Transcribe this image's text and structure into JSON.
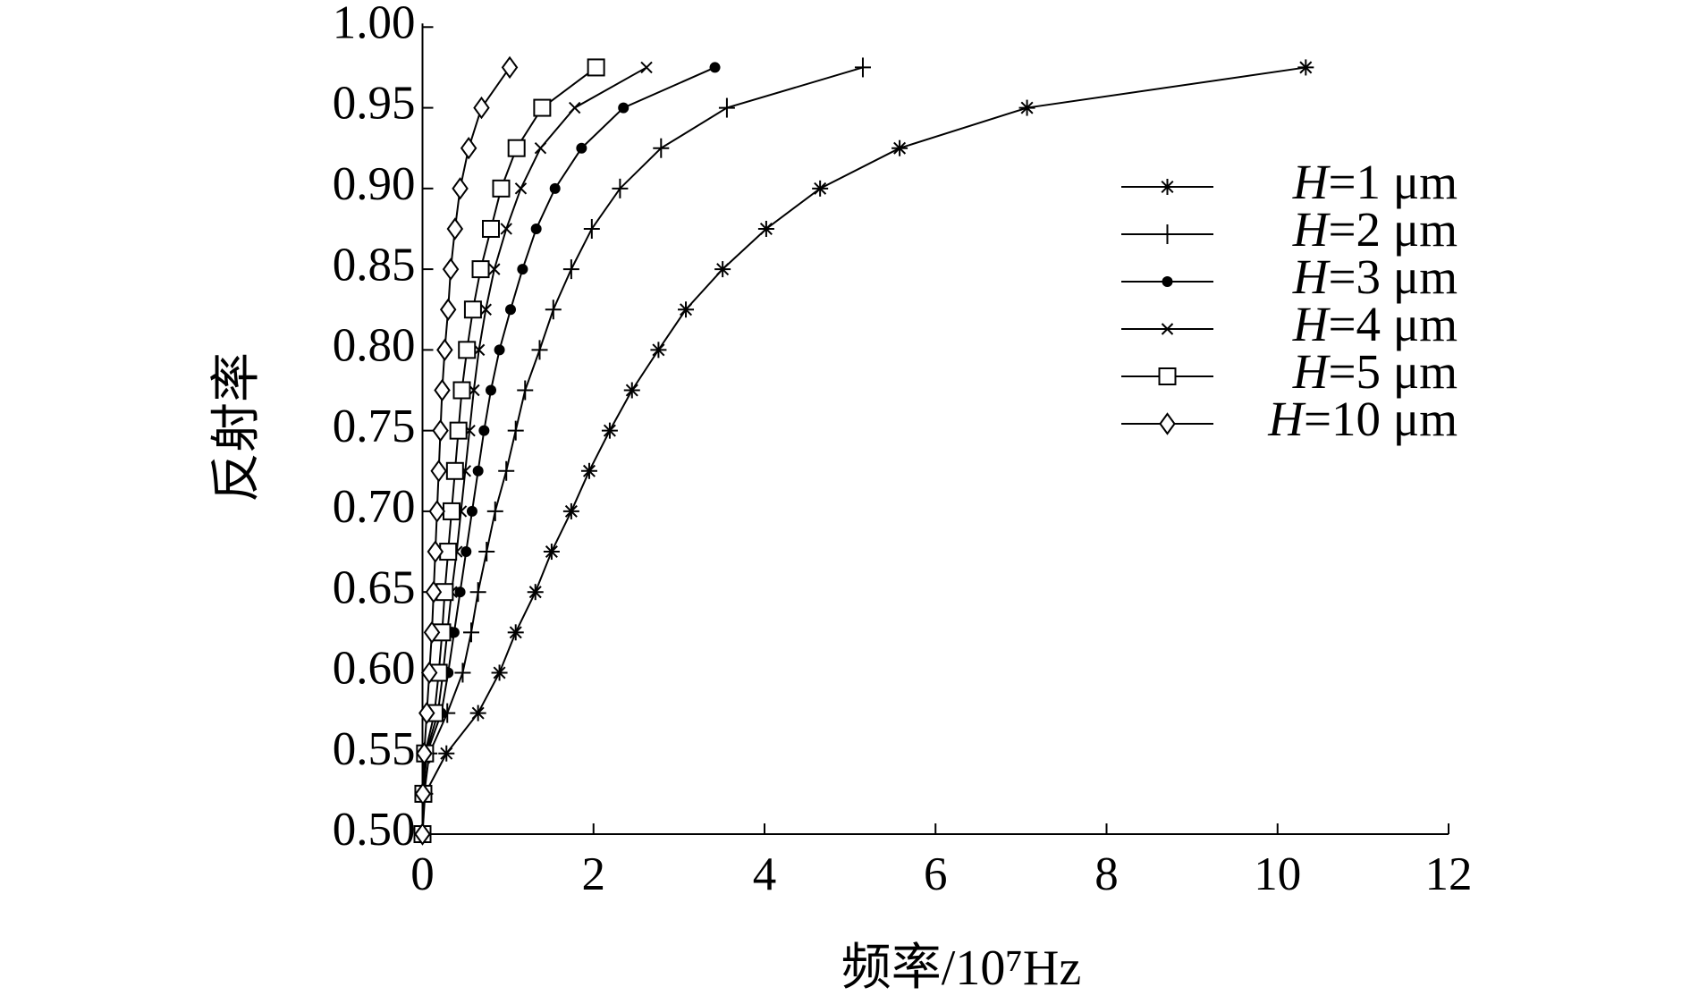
{
  "chart_data": {
    "type": "line",
    "xlabel": "频率/10⁷Hz",
    "ylabel": "反射率",
    "xlim": [
      0,
      12
    ],
    "xticks": [
      0,
      2,
      4,
      6,
      8,
      10,
      12
    ],
    "ylim": [
      0.5,
      1.0
    ],
    "yticks": [
      {
        "value": 0.5,
        "label": "0.50"
      },
      0.55,
      {
        "value": 0.6,
        "label": "0.60"
      },
      0.65,
      {
        "value": 0.7,
        "label": "0.70"
      },
      0.75,
      {
        "value": 0.8,
        "label": "0.80"
      },
      0.85,
      {
        "value": 0.9,
        "label": "0.90"
      },
      0.95,
      {
        "value": 1.0,
        "label": "1.00"
      }
    ],
    "legend": "upper right",
    "series": [
      {
        "name": "H=1 μm",
        "marker": "star",
        "color": "#000000",
        "x": [
          0,
          0.03,
          0.28,
          0.65,
          0.9,
          1.09,
          1.32,
          1.51,
          1.74,
          1.95,
          2.19,
          2.45,
          2.76,
          3.08,
          3.51,
          4.02,
          4.65,
          5.58,
          7.07,
          10.33
        ],
        "values": [
          0.5,
          0.525,
          0.55,
          0.575,
          0.6,
          0.625,
          0.65,
          0.675,
          0.7,
          0.725,
          0.75,
          0.775,
          0.8,
          0.825,
          0.85,
          0.875,
          0.9,
          0.925,
          0.95,
          0.975
        ]
      },
      {
        "name": "H=2 μm",
        "marker": "plus",
        "color": "#000000",
        "x": [
          0,
          0.02,
          0.08,
          0.29,
          0.47,
          0.57,
          0.65,
          0.75,
          0.85,
          0.98,
          1.09,
          1.2,
          1.37,
          1.53,
          1.74,
          1.98,
          2.31,
          2.79,
          3.56,
          5.15
        ],
        "values": [
          0.5,
          0.525,
          0.55,
          0.575,
          0.6,
          0.625,
          0.65,
          0.675,
          0.7,
          0.725,
          0.75,
          0.775,
          0.8,
          0.825,
          0.85,
          0.875,
          0.9,
          0.925,
          0.95,
          0.975
        ]
      },
      {
        "name": "H=3 μm",
        "marker": "dot",
        "color": "#000000",
        "x": [
          0,
          0.01,
          0.05,
          0.22,
          0.3,
          0.37,
          0.44,
          0.51,
          0.58,
          0.65,
          0.72,
          0.8,
          0.9,
          1.03,
          1.17,
          1.33,
          1.55,
          1.86,
          2.35,
          3.42
        ],
        "values": [
          0.5,
          0.525,
          0.55,
          0.575,
          0.6,
          0.625,
          0.65,
          0.675,
          0.7,
          0.725,
          0.75,
          0.775,
          0.8,
          0.825,
          0.85,
          0.875,
          0.9,
          0.925,
          0.95,
          0.975
        ]
      },
      {
        "name": "H=4 μm",
        "marker": "cross",
        "color": "#000000",
        "x": [
          0,
          0.01,
          0.04,
          0.18,
          0.24,
          0.29,
          0.34,
          0.4,
          0.45,
          0.5,
          0.55,
          0.6,
          0.66,
          0.74,
          0.84,
          0.98,
          1.15,
          1.38,
          1.78,
          2.62
        ],
        "values": [
          0.5,
          0.525,
          0.55,
          0.575,
          0.6,
          0.625,
          0.65,
          0.675,
          0.7,
          0.725,
          0.75,
          0.775,
          0.8,
          0.825,
          0.85,
          0.875,
          0.9,
          0.925,
          0.95,
          0.975
        ]
      },
      {
        "name": "H=5 μm",
        "marker": "square",
        "color": "#000000",
        "x": [
          0,
          0.01,
          0.03,
          0.14,
          0.19,
          0.23,
          0.26,
          0.3,
          0.34,
          0.38,
          0.42,
          0.46,
          0.52,
          0.59,
          0.68,
          0.8,
          0.92,
          1.1,
          1.4,
          2.03
        ],
        "values": [
          0.5,
          0.525,
          0.55,
          0.575,
          0.6,
          0.625,
          0.65,
          0.675,
          0.7,
          0.725,
          0.75,
          0.775,
          0.8,
          0.825,
          0.85,
          0.875,
          0.9,
          0.925,
          0.95,
          0.975
        ]
      },
      {
        "name": "H=10 μm",
        "marker": "diamond",
        "color": "#000000",
        "x": [
          0,
          0.005,
          0.02,
          0.05,
          0.08,
          0.11,
          0.13,
          0.15,
          0.17,
          0.19,
          0.21,
          0.23,
          0.26,
          0.3,
          0.33,
          0.38,
          0.44,
          0.54,
          0.69,
          1.02
        ],
        "values": [
          0.5,
          0.525,
          0.55,
          0.575,
          0.6,
          0.625,
          0.65,
          0.675,
          0.7,
          0.725,
          0.75,
          0.775,
          0.8,
          0.825,
          0.85,
          0.875,
          0.9,
          0.925,
          0.95,
          0.975
        ]
      }
    ]
  }
}
